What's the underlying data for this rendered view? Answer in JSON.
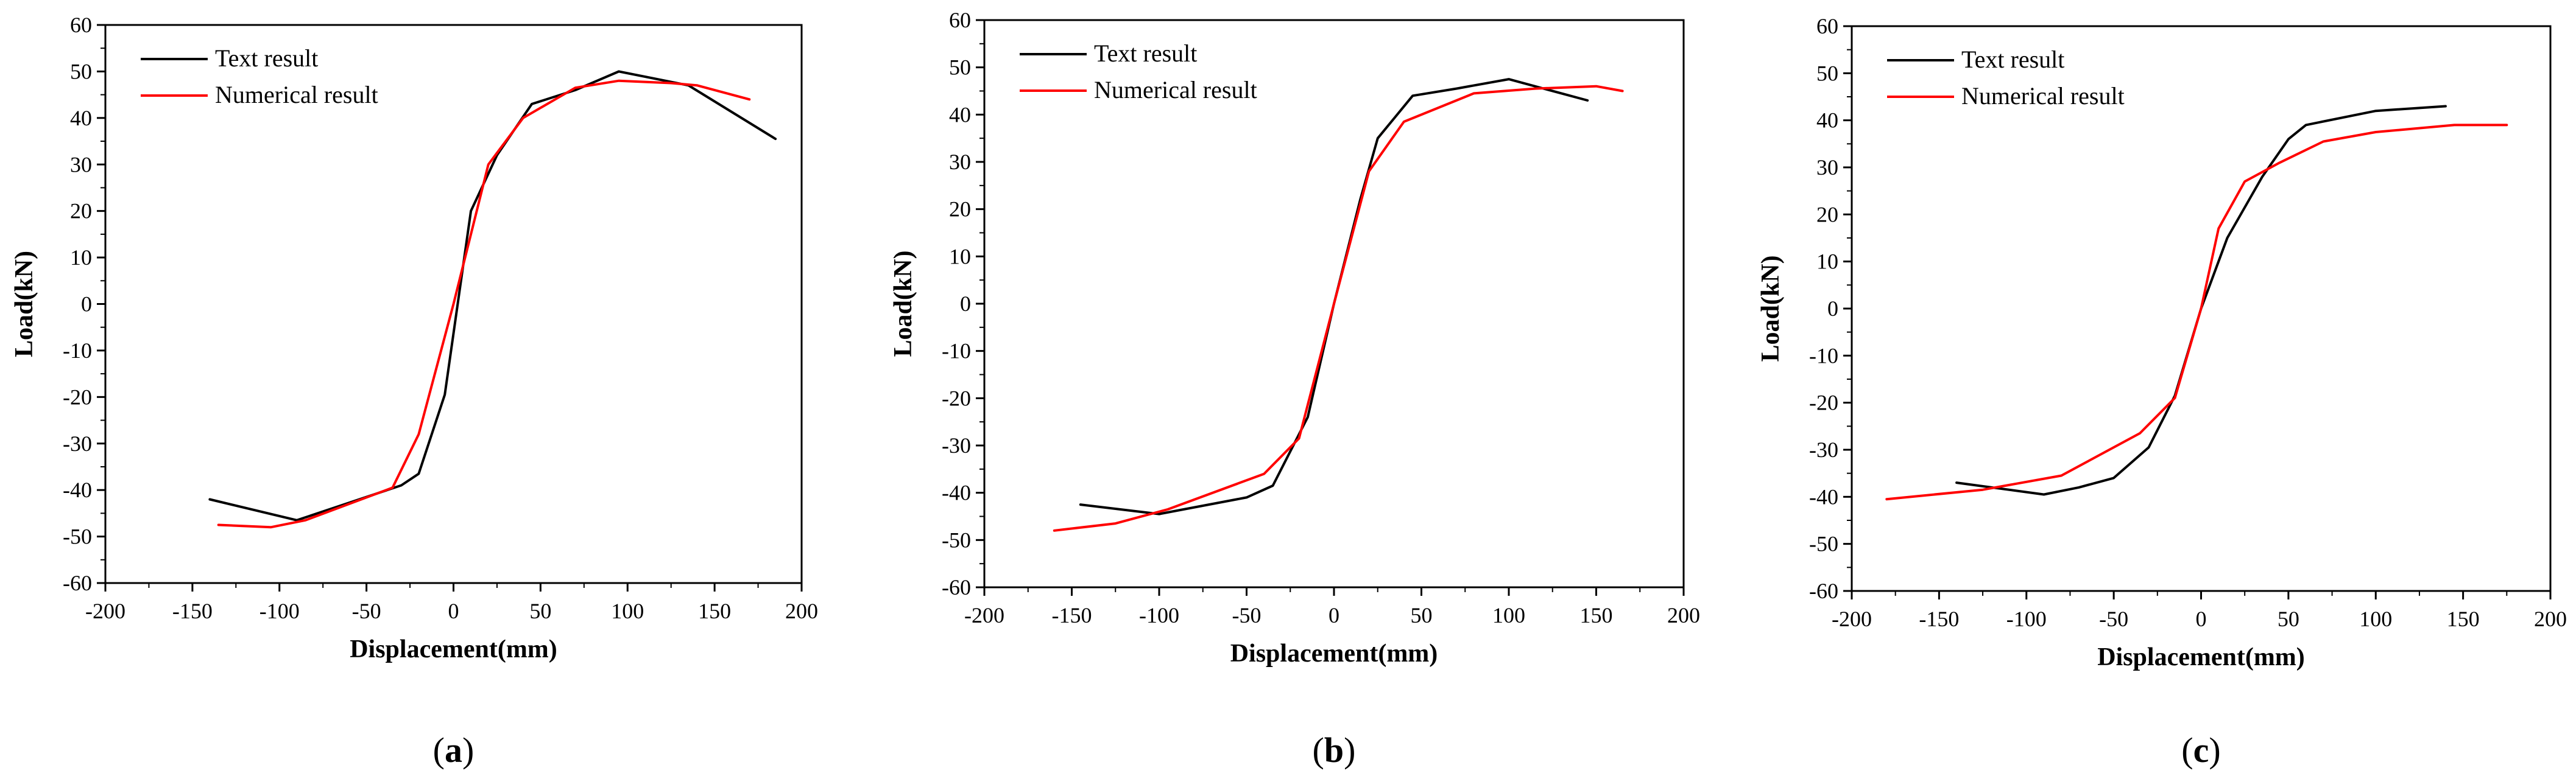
{
  "chart_data": [
    {
      "type": "line",
      "panel_label": "a",
      "xlabel": "Displacement(mm)",
      "ylabel": "Load(kN)",
      "xlim": [
        -200,
        200
      ],
      "ylim": [
        -60,
        60
      ],
      "x_ticks": [
        -200,
        -150,
        -100,
        -50,
        0,
        50,
        100,
        150,
        200
      ],
      "y_ticks": [
        -60,
        -50,
        -40,
        -30,
        -20,
        -10,
        0,
        10,
        20,
        30,
        40,
        50,
        60
      ],
      "legend_position": "top-left",
      "series": [
        {
          "name": "Text result",
          "color": "#000000",
          "points": [
            [
              -140,
              -42
            ],
            [
              -90,
              -46.5
            ],
            [
              -30,
              -39
            ],
            [
              -20,
              -36.5
            ],
            [
              -5,
              -19.5
            ],
            [
              10,
              20
            ],
            [
              25,
              32
            ],
            [
              45,
              43
            ],
            [
              70,
              46
            ],
            [
              95,
              50
            ],
            [
              135,
              47
            ],
            [
              185,
              35.5
            ]
          ]
        },
        {
          "name": "Numerical result",
          "color": "#ff0000",
          "points": [
            [
              -135,
              -47.5
            ],
            [
              -105,
              -48
            ],
            [
              -85,
              -46.5
            ],
            [
              -35,
              -39.5
            ],
            [
              -20,
              -28
            ],
            [
              0,
              0
            ],
            [
              20,
              30
            ],
            [
              40,
              40
            ],
            [
              70,
              46.5
            ],
            [
              95,
              48
            ],
            [
              125,
              47.5
            ],
            [
              140,
              47
            ],
            [
              170,
              44
            ]
          ]
        }
      ]
    },
    {
      "type": "line",
      "panel_label": "b",
      "xlabel": "Displacement(mm)",
      "ylabel": "Load(kN)",
      "xlim": [
        -200,
        200
      ],
      "ylim": [
        -60,
        60
      ],
      "x_ticks": [
        -200,
        -150,
        -100,
        -50,
        0,
        50,
        100,
        150,
        200
      ],
      "y_ticks": [
        -60,
        -50,
        -40,
        -30,
        -20,
        -10,
        0,
        10,
        20,
        30,
        40,
        50,
        60
      ],
      "legend_position": "top-left",
      "series": [
        {
          "name": "Text result",
          "color": "#000000",
          "points": [
            [
              -145,
              -42.5
            ],
            [
              -100,
              -44.5
            ],
            [
              -50,
              -41
            ],
            [
              -35,
              -38.5
            ],
            [
              -15,
              -24
            ],
            [
              0,
              0
            ],
            [
              15,
              22
            ],
            [
              25,
              35
            ],
            [
              45,
              44
            ],
            [
              70,
              45.5
            ],
            [
              100,
              47.5
            ],
            [
              145,
              43
            ]
          ]
        },
        {
          "name": "Numerical result",
          "color": "#ff0000",
          "points": [
            [
              -160,
              -48
            ],
            [
              -125,
              -46.5
            ],
            [
              -95,
              -43.5
            ],
            [
              -40,
              -36
            ],
            [
              -20,
              -28.5
            ],
            [
              0,
              0
            ],
            [
              20,
              28
            ],
            [
              40,
              38.5
            ],
            [
              80,
              44.5
            ],
            [
              115,
              45.5
            ],
            [
              150,
              46
            ],
            [
              165,
              45
            ]
          ]
        }
      ]
    },
    {
      "type": "line",
      "panel_label": "c",
      "xlabel": "Displacement(mm)",
      "ylabel": "Load(kN)",
      "xlim": [
        -200,
        200
      ],
      "ylim": [
        -60,
        60
      ],
      "x_ticks": [
        -200,
        -150,
        -100,
        -50,
        0,
        50,
        100,
        150,
        200
      ],
      "y_ticks": [
        -60,
        -50,
        -40,
        -30,
        -20,
        -10,
        0,
        10,
        20,
        30,
        40,
        50,
        60
      ],
      "legend_position": "top-left",
      "series": [
        {
          "name": "Text result",
          "color": "#000000",
          "points": [
            [
              -140,
              -37
            ],
            [
              -90,
              -39.5
            ],
            [
              -70,
              -38
            ],
            [
              -50,
              -36
            ],
            [
              -30,
              -29.5
            ],
            [
              -15,
              -18.5
            ],
            [
              0,
              0
            ],
            [
              15,
              15
            ],
            [
              35,
              28
            ],
            [
              50,
              36
            ],
            [
              60,
              39
            ],
            [
              100,
              42
            ],
            [
              140,
              43
            ]
          ]
        },
        {
          "name": "Numerical result",
          "color": "#ff0000",
          "points": [
            [
              -180,
              -40.5
            ],
            [
              -125,
              -38.5
            ],
            [
              -80,
              -35.5
            ],
            [
              -35,
              -26.5
            ],
            [
              -15,
              -19
            ],
            [
              0,
              0
            ],
            [
              10,
              17
            ],
            [
              25,
              27
            ],
            [
              45,
              31
            ],
            [
              70,
              35.5
            ],
            [
              100,
              37.5
            ],
            [
              145,
              39
            ],
            [
              175,
              39
            ]
          ]
        }
      ]
    }
  ]
}
